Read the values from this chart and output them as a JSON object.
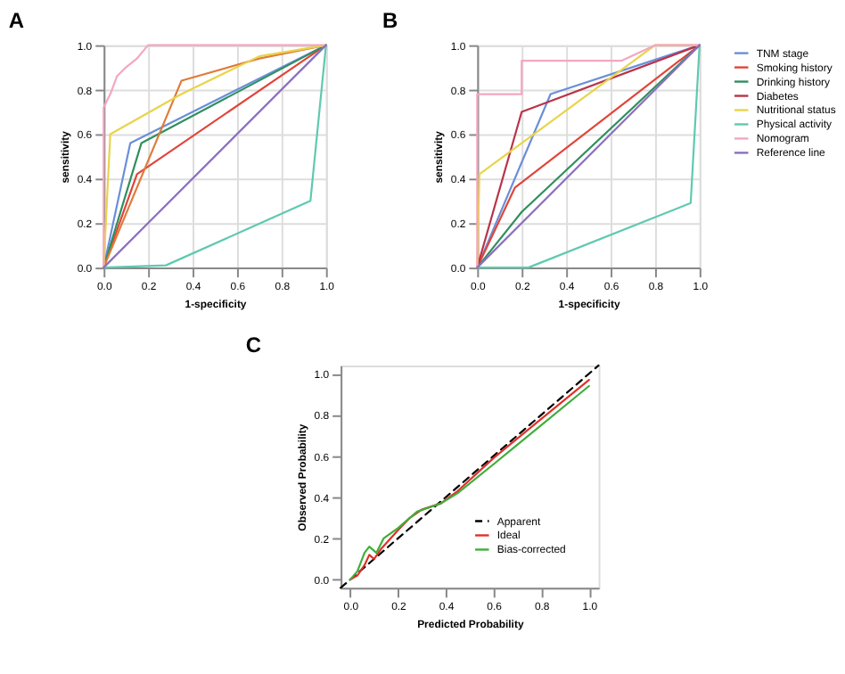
{
  "chart_data": [
    {
      "type": "line",
      "title": "A",
      "xlabel": "1-specificity",
      "ylabel": "sensitivity",
      "xlim": [
        0,
        1
      ],
      "ylim": [
        0,
        1
      ],
      "grid": true,
      "legend": false,
      "xticks": [
        {
          "value": 0,
          "label": "0.0"
        },
        {
          "value": 0.2,
          "label": "0.2"
        },
        {
          "value": 0.4,
          "label": "0.4"
        },
        {
          "value": 0.6,
          "label": "0.6"
        },
        {
          "value": 0.8,
          "label": "0.8"
        },
        {
          "value": 1,
          "label": "1.0"
        }
      ],
      "yticks": [
        {
          "value": 0,
          "label": "0.0"
        },
        {
          "value": 0.2,
          "label": "0.2"
        },
        {
          "value": 0.4,
          "label": "0.4"
        },
        {
          "value": 0.6,
          "label": "0.6"
        },
        {
          "value": 0.8,
          "label": "0.8"
        },
        {
          "value": 1,
          "label": "1.0"
        }
      ],
      "series": [
        {
          "color": "#6a8fd8",
          "x": [
            0,
            0.12,
            1
          ],
          "values": [
            0,
            0.56,
            1
          ]
        },
        {
          "color": "#e0453a",
          "x": [
            0,
            0.15,
            1
          ],
          "values": [
            0,
            0.42,
            1
          ]
        },
        {
          "color": "#2f8f5f",
          "x": [
            0,
            0.17,
            1
          ],
          "values": [
            0,
            0.56,
            1
          ]
        },
        {
          "color": "#e07b39",
          "x": [
            0,
            0.35,
            0.7,
            1
          ],
          "values": [
            0,
            0.84,
            0.94,
            1
          ]
        },
        {
          "color": "#e8d44a",
          "x": [
            0,
            0.03,
            0.35,
            0.7,
            1
          ],
          "values": [
            0,
            0.6,
            0.78,
            0.95,
            1
          ]
        },
        {
          "color": "#5fc9b0",
          "x": [
            0,
            0.28,
            0.93,
            1
          ],
          "values": [
            0,
            0.01,
            0.3,
            1
          ]
        },
        {
          "color": "#f4a6c0",
          "x": [
            0,
            0,
            0.03,
            0.06,
            0.1,
            0.15,
            0.2,
            1
          ],
          "values": [
            0,
            0.72,
            0.78,
            0.86,
            0.9,
            0.94,
            1,
            1
          ]
        },
        {
          "color": "#8a6fbf",
          "x": [
            0,
            1
          ],
          "values": [
            0,
            1
          ]
        }
      ]
    },
    {
      "type": "line",
      "title": "B",
      "xlabel": "1-specificity",
      "ylabel": "sensitivity",
      "xlim": [
        0,
        1
      ],
      "ylim": [
        0,
        1
      ],
      "grid": true,
      "legend": "right",
      "xticks": [
        {
          "value": 0,
          "label": "0.0"
        },
        {
          "value": 0.2,
          "label": "0.2"
        },
        {
          "value": 0.4,
          "label": "0.4"
        },
        {
          "value": 0.6,
          "label": "0.6"
        },
        {
          "value": 0.8,
          "label": "0.8"
        },
        {
          "value": 1,
          "label": "1.0"
        }
      ],
      "yticks": [
        {
          "value": 0,
          "label": "0.0"
        },
        {
          "value": 0.2,
          "label": "0.2"
        },
        {
          "value": 0.4,
          "label": "0.4"
        },
        {
          "value": 0.6,
          "label": "0.6"
        },
        {
          "value": 0.8,
          "label": "0.8"
        },
        {
          "value": 1,
          "label": "1.0"
        }
      ],
      "series": [
        {
          "name": "TNM stage",
          "color": "#6a8fd8",
          "x": [
            0,
            0.33,
            1
          ],
          "values": [
            0,
            0.78,
            1
          ]
        },
        {
          "name": "Smoking history",
          "color": "#e0453a",
          "x": [
            0,
            0.17,
            1
          ],
          "values": [
            0,
            0.36,
            1
          ]
        },
        {
          "name": "Drinking history",
          "color": "#2f8f5f",
          "x": [
            0,
            0.2,
            1
          ],
          "values": [
            0,
            0.25,
            1
          ]
        },
        {
          "name": "Diabetes",
          "color": "#b8344a",
          "x": [
            0,
            0.2,
            1
          ],
          "values": [
            0,
            0.7,
            1
          ]
        },
        {
          "name": "Nutritional status",
          "color": "#e8d44a",
          "x": [
            0,
            0.01,
            0.8,
            1
          ],
          "values": [
            0,
            0.42,
            1,
            1
          ]
        },
        {
          "name": "Physical activity",
          "color": "#5fc9b0",
          "x": [
            0,
            0.23,
            0.96,
            1
          ],
          "values": [
            0,
            0,
            0.29,
            1
          ]
        },
        {
          "name": "Nomogram",
          "color": "#f4a6c0",
          "x": [
            0,
            0,
            0.2,
            0.2,
            0.65,
            0.8,
            1
          ],
          "values": [
            0,
            0.78,
            0.78,
            0.93,
            0.93,
            1,
            1
          ]
        },
        {
          "name": "Reference line",
          "color": "#8a6fbf",
          "x": [
            0,
            1
          ],
          "values": [
            0,
            1
          ]
        }
      ]
    },
    {
      "type": "line",
      "title": "C",
      "xlabel": "Predicted Probability",
      "ylabel": "Observed Probability",
      "xlim": [
        -0.04,
        1.04
      ],
      "ylim": [
        -0.04,
        1.04
      ],
      "grid": false,
      "legend": "bottom right",
      "xticks": [
        {
          "value": 0,
          "label": "0.0"
        },
        {
          "value": 0.2,
          "label": "0.2"
        },
        {
          "value": 0.4,
          "label": "0.4"
        },
        {
          "value": 0.6,
          "label": "0.6"
        },
        {
          "value": 0.8,
          "label": "0.8"
        },
        {
          "value": 1,
          "label": "1.0"
        }
      ],
      "yticks": [
        {
          "value": 0,
          "label": "0.0"
        },
        {
          "value": 0.2,
          "label": "0.2"
        },
        {
          "value": 0.4,
          "label": "0.4"
        },
        {
          "value": 0.6,
          "label": "0.6"
        },
        {
          "value": 0.8,
          "label": "0.8"
        },
        {
          "value": 1,
          "label": "1.0"
        }
      ],
      "series": [
        {
          "name": "Apparent",
          "color": "#000000",
          "line_style": "dashed",
          "x": [
            -0.04,
            1.04
          ],
          "values": [
            -0.04,
            1.04
          ]
        },
        {
          "name": "Ideal",
          "color": "#e0302a",
          "x": [
            0,
            0.03,
            0.06,
            0.08,
            0.1,
            0.13,
            0.2,
            0.25,
            0.3,
            0.38,
            0.45,
            0.6,
            0.8,
            1
          ],
          "values": [
            0,
            0.02,
            0.07,
            0.12,
            0.1,
            0.15,
            0.24,
            0.3,
            0.34,
            0.37,
            0.43,
            0.59,
            0.78,
            0.97
          ]
        },
        {
          "name": "Bias-corrected",
          "color": "#3fae3a",
          "x": [
            0,
            0.03,
            0.06,
            0.08,
            0.11,
            0.14,
            0.2,
            0.28,
            0.33,
            0.38,
            0.45,
            0.6,
            0.8,
            1
          ],
          "values": [
            0,
            0.04,
            0.13,
            0.16,
            0.13,
            0.2,
            0.25,
            0.33,
            0.35,
            0.37,
            0.42,
            0.56,
            0.75,
            0.94
          ]
        }
      ]
    }
  ]
}
